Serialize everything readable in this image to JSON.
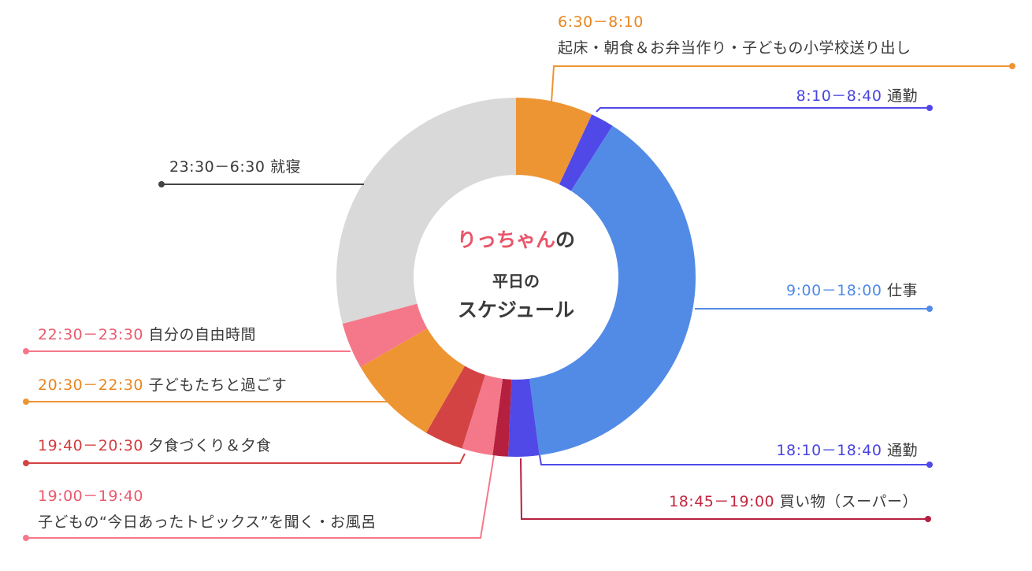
{
  "center_title": {
    "name": "りっちゃん",
    "particle": "の",
    "line2": "平日の",
    "line3": "スケジュール"
  },
  "chart_data": {
    "type": "pie",
    "subtype": "donut",
    "title": "りっちゃんの平日のスケジュール",
    "start_time": "6:30",
    "segments": [
      {
        "time": "6:30－8:10",
        "start": 6.5,
        "end": 8.1667,
        "desc": "起床・朝食＆お弁当作り・子どもの小学校送り出し",
        "color": "#ee9533",
        "text_color": "#e8851f"
      },
      {
        "time": "8:10－8:40",
        "start": 8.1667,
        "end": 8.6667,
        "desc": "通勤",
        "color": "#5049e8",
        "text_color": "#4a44e0"
      },
      {
        "time": "9:00－18:00",
        "start": 9,
        "end": 18,
        "desc": "仕事",
        "color": "#528be6",
        "text_color": "#4f8ae6"
      },
      {
        "time": "18:10－18:40",
        "start": 18.1667,
        "end": 18.6667,
        "desc": "通勤",
        "color": "#5049e8",
        "text_color": "#4a44e0"
      },
      {
        "time": "18:45－19:00",
        "start": 18.75,
        "end": 19,
        "desc": "買い物（スーパー）",
        "color": "#b5203f",
        "text_color": "#c4263f"
      },
      {
        "time": "19:00－19:40",
        "start": 19,
        "end": 19.6667,
        "desc": "子どもの“今日あったトピックス”を聞く・お風呂",
        "color": "#f5788a",
        "text_color": "#ea5a6e"
      },
      {
        "time": "19:40－20:30",
        "start": 19.6667,
        "end": 20.5,
        "desc": "夕食づくり＆夕食",
        "color": "#d44344",
        "text_color": "#d23c3e"
      },
      {
        "time": "20:30－22:30",
        "start": 20.5,
        "end": 22.5,
        "desc": "子どもたちと過ごす",
        "color": "#ee9533",
        "text_color": "#e8851f"
      },
      {
        "time": "22:30－23:30",
        "start": 22.5,
        "end": 23.5,
        "desc": "自分の自由時間",
        "color": "#f5788a",
        "text_color": "#ea5a6e"
      },
      {
        "time": "23:30－6:30",
        "start": 23.5,
        "end": 30.5,
        "desc": "就寝",
        "color": "#d9d9d9",
        "text_color": "#3a3a3a"
      }
    ]
  }
}
